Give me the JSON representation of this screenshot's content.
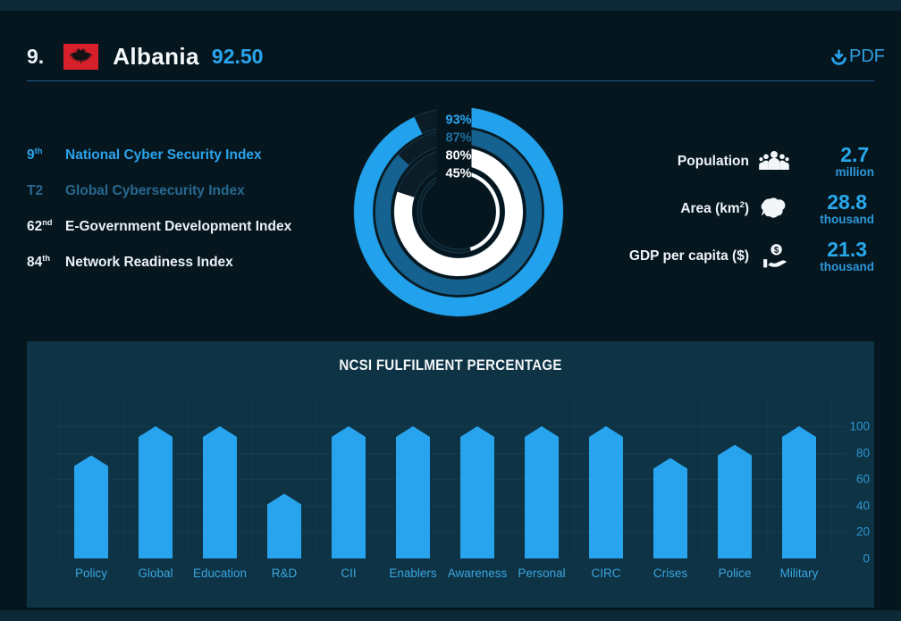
{
  "header": {
    "rank": "9.",
    "country": "Albania",
    "score": "92.50",
    "pdf_label": "PDF",
    "flag": "albania-flag"
  },
  "rankings": [
    {
      "rank": "9",
      "suffix": "th",
      "label": "National Cyber Security Index",
      "style": "primary"
    },
    {
      "rank": "T2",
      "suffix": "",
      "label": "Global Cybersecurity Index",
      "style": "muted"
    },
    {
      "rank": "62",
      "suffix": "nd",
      "label": "E-Government Development Index",
      "style": "white"
    },
    {
      "rank": "84",
      "suffix": "th",
      "label": "Network Readiness Index",
      "style": "white"
    }
  ],
  "stats": [
    {
      "label_pre": "Population",
      "sup": "",
      "label_post": "",
      "icon": "population-people-icon",
      "value": "2.7",
      "unit": "million"
    },
    {
      "label_pre": "Area (km",
      "sup": "2",
      "label_post": ")",
      "icon": "area-map-icon",
      "value": "28.8",
      "unit": "thousand"
    },
    {
      "label_pre": "GDP per capita ($)",
      "sup": "",
      "label_post": "",
      "icon": "gdp-hand-money-icon",
      "value": "21.3",
      "unit": "thousand"
    }
  ],
  "chart_data": [
    {
      "type": "concentric-donut",
      "start": "top",
      "direction": "clockwise",
      "rings": [
        {
          "label": "93%",
          "value": 93,
          "color": "#22a2ec",
          "label_color": "#2ba6ee"
        },
        {
          "label": "87%",
          "value": 87,
          "color": "#15618f",
          "label_color": "#1f6f9e"
        },
        {
          "label": "80%",
          "value": 80,
          "color": "#ffffff",
          "label_color": "#ffffff"
        },
        {
          "label": "45%",
          "value": 45,
          "color": "#ffffff",
          "label_color": "#ffffff"
        }
      ]
    },
    {
      "type": "bar",
      "title": "NCSI FULFILMENT PERCENTAGE",
      "categories": [
        "Policy",
        "Global",
        "Education",
        "R&D",
        "CII",
        "Enablers",
        "Awareness",
        "Personal",
        "CIRC",
        "Crises",
        "Police",
        "Military"
      ],
      "values": [
        78,
        100,
        100,
        49,
        100,
        100,
        100,
        100,
        100,
        76,
        86,
        100
      ],
      "yticks": [
        0,
        20,
        40,
        60,
        80,
        100
      ],
      "ylim": [
        0,
        100
      ],
      "ytick_side": "right",
      "grid": "subtle",
      "legend": "none",
      "bar_color": "#28a3ee"
    }
  ],
  "colors": {
    "accent_blue": "#28a3ee",
    "ring_dark_blue": "#15618f",
    "muted_link_blue": "#27688f",
    "flag_red": "#d7202a",
    "card_bg": "#06161f",
    "panel_bg": "#0e3344"
  }
}
